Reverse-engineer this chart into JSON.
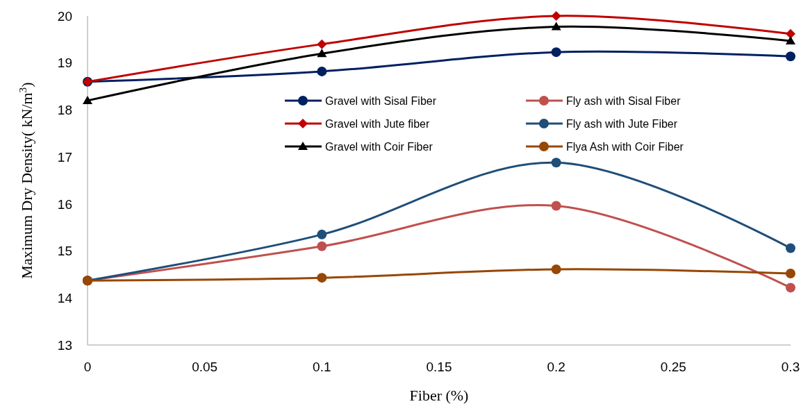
{
  "chart_data": {
    "type": "line",
    "xlabel": "Fiber (%)",
    "ylabel": "Maximum Dry Density( kN/m$^{3}$)",
    "x": [
      0,
      0.1,
      0.2,
      0.3
    ],
    "xlim": [
      0,
      0.3
    ],
    "xticks": [
      0,
      0.05,
      0.1,
      0.15,
      0.2,
      0.25,
      0.3
    ],
    "ylim": [
      13,
      20
    ],
    "yticks": [
      13,
      14,
      15,
      16,
      17,
      18,
      19,
      20
    ],
    "grid": false,
    "legend": "center",
    "series": [
      {
        "name": "Gravel with Sisal Fiber",
        "color": "#002060",
        "marker": "circle",
        "values": [
          18.6,
          18.82,
          19.23,
          19.14
        ]
      },
      {
        "name": "Fly ash with Sisal Fiber",
        "color": "#c0504d",
        "marker": "circle",
        "values": [
          14.37,
          15.1,
          15.96,
          14.22
        ]
      },
      {
        "name": "Gravel with Jute fiber",
        "color": "#c00000",
        "marker": "diamond",
        "values": [
          18.6,
          19.4,
          20.0,
          19.62
        ]
      },
      {
        "name": "Fly ash with Jute Fiber",
        "color": "#1f4e79",
        "marker": "circle",
        "values": [
          14.37,
          15.35,
          16.88,
          15.06
        ]
      },
      {
        "name": "Gravel with Coir Fiber",
        "color": "#000000",
        "marker": "triangle",
        "values": [
          18.2,
          19.2,
          19.77,
          19.47
        ]
      },
      {
        "name": "Flya Ash with Coir Fiber",
        "color": "#974706",
        "marker": "circle",
        "values": [
          14.37,
          14.43,
          14.61,
          14.52
        ]
      }
    ]
  }
}
